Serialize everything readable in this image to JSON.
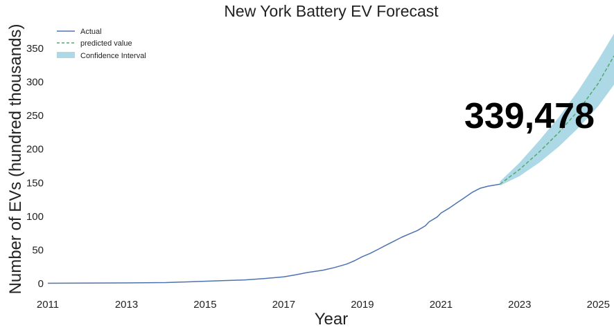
{
  "chart_data": {
    "type": "line",
    "title": "New York Battery EV Forecast",
    "xlabel": "Year",
    "ylabel": "Number of EVs (hundred thousands)",
    "xlim": [
      2011,
      2025.4
    ],
    "ylim": [
      -10,
      390
    ],
    "grid": false,
    "legend_position": "top-left",
    "x_ticks": [
      {
        "value": 2011,
        "label": "2011"
      },
      {
        "value": 2013,
        "label": "2013"
      },
      {
        "value": 2015,
        "label": "2015"
      },
      {
        "value": 2017,
        "label": "2017"
      },
      {
        "value": 2019,
        "label": "2019"
      },
      {
        "value": 2021,
        "label": "2021"
      },
      {
        "value": 2023,
        "label": "2023"
      },
      {
        "value": 2025,
        "label": "2025"
      }
    ],
    "y_ticks": [
      {
        "value": 0,
        "label": "0"
      },
      {
        "value": 50,
        "label": "50"
      },
      {
        "value": 100,
        "label": "100"
      },
      {
        "value": 150,
        "label": "150"
      },
      {
        "value": 200,
        "label": "200"
      },
      {
        "value": 250,
        "label": "250"
      },
      {
        "value": 300,
        "label": "300"
      },
      {
        "value": 350,
        "label": "350"
      }
    ],
    "series": [
      {
        "name": "Actual",
        "style": "solid",
        "color": "#4c72b0",
        "x": [
          2011.0,
          2012.0,
          2013.0,
          2014.0,
          2014.5,
          2015.0,
          2015.5,
          2016.0,
          2016.5,
          2017.0,
          2017.3,
          2017.6,
          2018.0,
          2018.3,
          2018.6,
          2018.8,
          2019.0,
          2019.2,
          2019.4,
          2019.6,
          2019.8,
          2020.0,
          2020.2,
          2020.4,
          2020.6,
          2020.7,
          2020.9,
          2021.0,
          2021.2,
          2021.4,
          2021.6,
          2021.8,
          2022.0,
          2022.2,
          2022.4,
          2022.5
        ],
        "y": [
          0.5,
          0.7,
          1,
          1.5,
          2.5,
          3.5,
          4.5,
          5.5,
          7.5,
          10,
          13,
          16.5,
          20,
          24,
          29,
          34,
          40,
          45,
          51,
          57,
          63,
          69,
          74,
          79,
          86,
          92,
          99,
          105,
          112,
          120,
          128,
          136,
          142,
          145,
          147,
          148
        ]
      },
      {
        "name": "predicted value",
        "style": "dashed",
        "color": "#55a868",
        "x": [
          2022.5,
          2023.0,
          2023.5,
          2024.0,
          2024.5,
          2025.0,
          2025.4
        ],
        "y": [
          148,
          170,
          196,
          225,
          258,
          298,
          339
        ]
      }
    ],
    "confidence_interval": {
      "name": "Confidence Interval",
      "color": "#add8e6",
      "x": [
        2022.5,
        2023.0,
        2023.5,
        2024.0,
        2024.5,
        2025.0,
        2025.4
      ],
      "lower": [
        146,
        160,
        180,
        204,
        232,
        264,
        296
      ],
      "upper": [
        152,
        180,
        213,
        248,
        288,
        333,
        372
      ]
    },
    "annotation": {
      "text": "339,478",
      "x": 2023.25,
      "y": 250
    }
  }
}
